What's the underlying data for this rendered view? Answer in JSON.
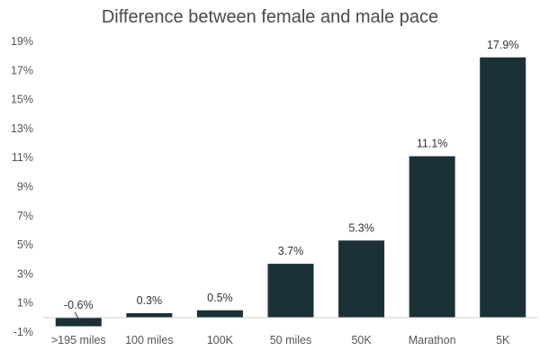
{
  "chart_data": {
    "type": "bar",
    "title": "Difference between female and male pace",
    "xlabel": "",
    "ylabel": "",
    "categories": [
      ">195 miles",
      "100 miles",
      "100K",
      "50 miles",
      "50K",
      "Marathon",
      "5K"
    ],
    "values": [
      -0.6,
      0.3,
      0.5,
      3.7,
      5.3,
      11.1,
      17.9
    ],
    "data_labels": [
      "-0.6%",
      "0.3%",
      "0.5%",
      "3.7%",
      "5.3%",
      "11.1%",
      "17.9%"
    ],
    "ylim": [
      -1,
      19
    ],
    "yticks": [
      -1,
      1,
      3,
      5,
      7,
      9,
      11,
      13,
      15,
      17,
      19
    ],
    "ytick_labels": [
      "-1%",
      "1%",
      "3%",
      "5%",
      "7%",
      "9%",
      "11%",
      "13%",
      "15%",
      "17%",
      "19%"
    ],
    "grid": false,
    "legend": "none",
    "bar_color": "#1c3038"
  }
}
